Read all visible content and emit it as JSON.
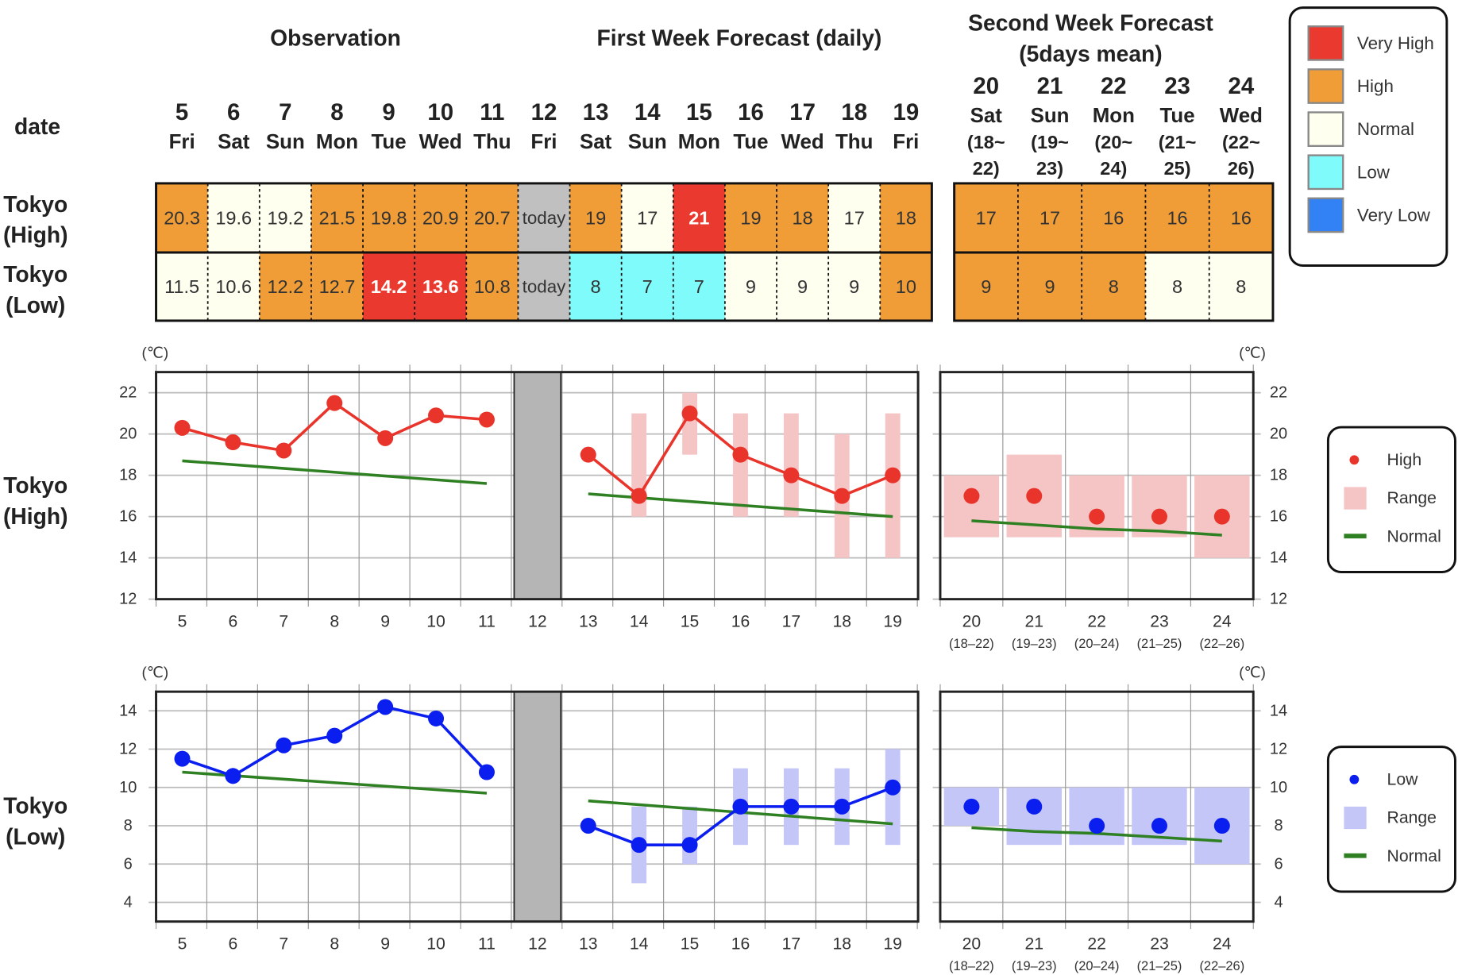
{
  "headers": {
    "observation": "Observation",
    "first_week": "First Week Forecast (daily)",
    "second_week_line1": "Second Week Forecast",
    "second_week_line2": "(5days mean)",
    "date_label": "date"
  },
  "row_labels": {
    "high": [
      "Tokyo",
      "(High)"
    ],
    "low": [
      "Tokyo",
      "(Low)"
    ]
  },
  "colors": {
    "very_high": "#ea3a2f",
    "high": "#f09d37",
    "normal": "#fffff0",
    "low": "#80fbfb",
    "very_low": "#3282f6",
    "today": "#c0c0c0",
    "high_line": "#e9342b",
    "high_range": "#f5c4c4",
    "low_line": "#0a1ef0",
    "low_range": "#c4c6f8",
    "normal_line": "#2e8022"
  },
  "daily_columns": [
    {
      "date": "5",
      "weekday": "Fri",
      "high": {
        "value": "20.3",
        "level": "high"
      },
      "low": {
        "value": "11.5",
        "level": "normal"
      }
    },
    {
      "date": "6",
      "weekday": "Sat",
      "high": {
        "value": "19.6",
        "level": "normal"
      },
      "low": {
        "value": "10.6",
        "level": "normal"
      }
    },
    {
      "date": "7",
      "weekday": "Sun",
      "high": {
        "value": "19.2",
        "level": "normal"
      },
      "low": {
        "value": "12.2",
        "level": "high"
      }
    },
    {
      "date": "8",
      "weekday": "Mon",
      "high": {
        "value": "21.5",
        "level": "high"
      },
      "low": {
        "value": "12.7",
        "level": "high"
      }
    },
    {
      "date": "9",
      "weekday": "Tue",
      "high": {
        "value": "19.8",
        "level": "high"
      },
      "low": {
        "value": "14.2",
        "level": "very_high"
      }
    },
    {
      "date": "10",
      "weekday": "Wed",
      "high": {
        "value": "20.9",
        "level": "high"
      },
      "low": {
        "value": "13.6",
        "level": "very_high"
      }
    },
    {
      "date": "11",
      "weekday": "Thu",
      "high": {
        "value": "20.7",
        "level": "high"
      },
      "low": {
        "value": "10.8",
        "level": "high"
      }
    },
    {
      "date": "12",
      "weekday": "Fri",
      "high": {
        "value": "today",
        "level": "today"
      },
      "low": {
        "value": "today",
        "level": "today"
      }
    },
    {
      "date": "13",
      "weekday": "Sat",
      "high": {
        "value": "19",
        "level": "high"
      },
      "low": {
        "value": "8",
        "level": "low"
      }
    },
    {
      "date": "14",
      "weekday": "Sun",
      "high": {
        "value": "17",
        "level": "normal"
      },
      "low": {
        "value": "7",
        "level": "low"
      }
    },
    {
      "date": "15",
      "weekday": "Mon",
      "high": {
        "value": "21",
        "level": "very_high"
      },
      "low": {
        "value": "7",
        "level": "low"
      }
    },
    {
      "date": "16",
      "weekday": "Tue",
      "high": {
        "value": "19",
        "level": "high"
      },
      "low": {
        "value": "9",
        "level": "normal"
      }
    },
    {
      "date": "17",
      "weekday": "Wed",
      "high": {
        "value": "18",
        "level": "high"
      },
      "low": {
        "value": "9",
        "level": "normal"
      }
    },
    {
      "date": "18",
      "weekday": "Thu",
      "high": {
        "value": "17",
        "level": "normal"
      },
      "low": {
        "value": "9",
        "level": "normal"
      }
    },
    {
      "date": "19",
      "weekday": "Fri",
      "high": {
        "value": "18",
        "level": "high"
      },
      "low": {
        "value": "10",
        "level": "high"
      }
    }
  ],
  "weekly_columns": [
    {
      "date": "20",
      "weekday": "Sat",
      "period_line1": "(18~",
      "period_line2": "22)",
      "high": {
        "value": "17",
        "level": "high"
      },
      "low": {
        "value": "9",
        "level": "high"
      }
    },
    {
      "date": "21",
      "weekday": "Sun",
      "period_line1": "(19~",
      "period_line2": "23)",
      "high": {
        "value": "17",
        "level": "high"
      },
      "low": {
        "value": "9",
        "level": "high"
      }
    },
    {
      "date": "22",
      "weekday": "Mon",
      "period_line1": "(20~",
      "period_line2": "24)",
      "high": {
        "value": "16",
        "level": "high"
      },
      "low": {
        "value": "8",
        "level": "high"
      }
    },
    {
      "date": "23",
      "weekday": "Tue",
      "period_line1": "(21~",
      "period_line2": "25)",
      "high": {
        "value": "16",
        "level": "high"
      },
      "low": {
        "value": "8",
        "level": "normal"
      }
    },
    {
      "date": "24",
      "weekday": "Wed",
      "period_line1": "(22~",
      "period_line2": "26)",
      "high": {
        "value": "16",
        "level": "high"
      },
      "low": {
        "value": "8",
        "level": "normal"
      }
    }
  ],
  "category_legend": [
    {
      "key": "very_high",
      "label": "Very High"
    },
    {
      "key": "high",
      "label": "High"
    },
    {
      "key": "normal",
      "label": "Normal"
    },
    {
      "key": "low",
      "label": "Low"
    },
    {
      "key": "very_low",
      "label": "Very Low"
    }
  ],
  "chart_data": [
    {
      "type": "line",
      "row": "high",
      "unit": "(℃)",
      "ylim": [
        12,
        23
      ],
      "yticks": [
        12,
        14,
        16,
        18,
        20,
        22
      ],
      "grid": true,
      "x_daily_labels": [
        "5",
        "6",
        "7",
        "8",
        "9",
        "10",
        "11",
        "12",
        "13",
        "14",
        "15",
        "16",
        "17",
        "18",
        "19"
      ],
      "observed": {
        "x": [
          5,
          6,
          7,
          8,
          9,
          10,
          11
        ],
        "values": [
          20.3,
          19.6,
          19.2,
          21.5,
          19.8,
          20.9,
          20.7
        ]
      },
      "observed_normal": {
        "x": [
          5,
          11
        ],
        "values": [
          18.7,
          17.6
        ]
      },
      "today_band_x": 12,
      "forecast": {
        "x": [
          13,
          14,
          15,
          16,
          17,
          18,
          19
        ],
        "values": [
          19,
          17,
          21,
          19,
          18,
          17,
          18
        ],
        "range_min": [
          null,
          16,
          19,
          16,
          16,
          14,
          14
        ],
        "range_max": [
          null,
          21,
          22,
          21,
          21,
          20,
          21
        ]
      },
      "forecast_normal": {
        "x": [
          13,
          19
        ],
        "values": [
          17.1,
          16.0
        ]
      },
      "week2": {
        "labels": [
          "20",
          "21",
          "22",
          "23",
          "24"
        ],
        "sublabels": [
          "(18–22)",
          "(19–23)",
          "(20–24)",
          "(21–25)",
          "(22–26)"
        ],
        "values": [
          17,
          17,
          16,
          16,
          16
        ],
        "range_min": [
          15,
          15,
          15,
          15,
          14
        ],
        "range_max": [
          18,
          19,
          18,
          18,
          18
        ],
        "normal": [
          15.8,
          15.6,
          15.4,
          15.3,
          15.1
        ]
      },
      "legend": [
        "High",
        "Range",
        "Normal"
      ],
      "legend_placement": "right"
    },
    {
      "type": "line",
      "row": "low",
      "unit": "(℃)",
      "ylim": [
        3,
        15
      ],
      "yticks": [
        4,
        6,
        8,
        10,
        12,
        14
      ],
      "grid": true,
      "x_daily_labels": [
        "5",
        "6",
        "7",
        "8",
        "9",
        "10",
        "11",
        "12",
        "13",
        "14",
        "15",
        "16",
        "17",
        "18",
        "19"
      ],
      "observed": {
        "x": [
          5,
          6,
          7,
          8,
          9,
          10,
          11
        ],
        "values": [
          11.5,
          10.6,
          12.2,
          12.7,
          14.2,
          13.6,
          10.8
        ]
      },
      "observed_normal": {
        "x": [
          5,
          11
        ],
        "values": [
          10.8,
          9.7
        ]
      },
      "today_band_x": 12,
      "forecast": {
        "x": [
          13,
          14,
          15,
          16,
          17,
          18,
          19
        ],
        "values": [
          8,
          7,
          7,
          9,
          9,
          9,
          10
        ],
        "range_min": [
          null,
          5,
          6,
          7,
          7,
          7,
          7
        ],
        "range_max": [
          null,
          9,
          9,
          11,
          11,
          11,
          12
        ]
      },
      "forecast_normal": {
        "x": [
          13,
          19
        ],
        "values": [
          9.3,
          8.1
        ]
      },
      "week2": {
        "labels": [
          "20",
          "21",
          "22",
          "23",
          "24"
        ],
        "sublabels": [
          "(18–22)",
          "(19–23)",
          "(20–24)",
          "(21–25)",
          "(22–26)"
        ],
        "values": [
          9,
          9,
          8,
          8,
          8
        ],
        "range_min": [
          8,
          7,
          7,
          7,
          6
        ],
        "range_max": [
          10,
          10,
          10,
          10,
          10
        ],
        "normal": [
          7.9,
          7.7,
          7.6,
          7.4,
          7.2
        ]
      },
      "legend": [
        "Low",
        "Range",
        "Normal"
      ],
      "legend_placement": "right"
    }
  ]
}
